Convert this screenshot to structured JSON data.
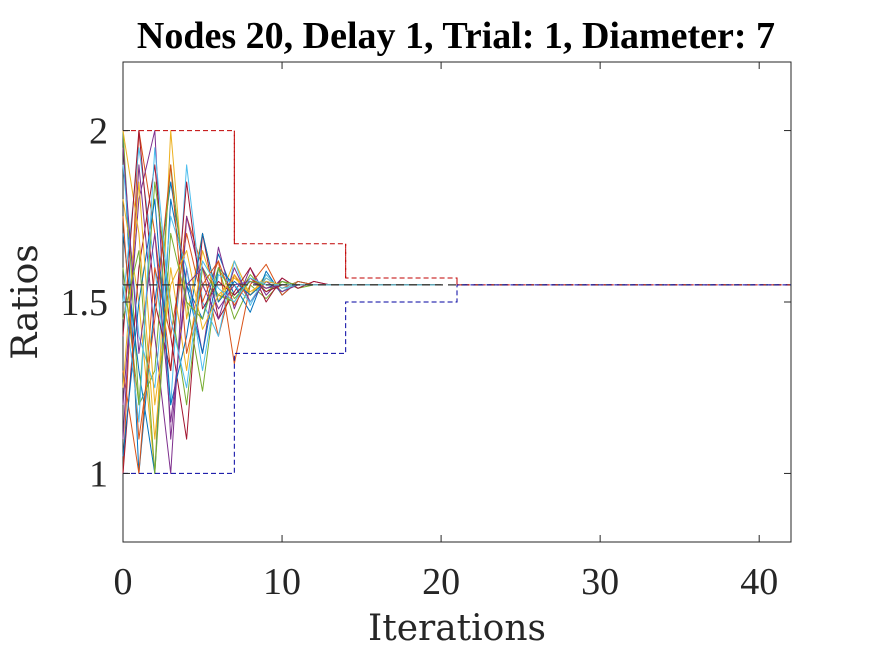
{
  "chart_data": {
    "type": "line",
    "title": "Nodes 20, Delay 1, Trial: 1, Diameter: 7",
    "xlabel": "Iterations",
    "ylabel": "Ratios",
    "xlim": [
      0,
      42
    ],
    "ylim": [
      0.8,
      2.2
    ],
    "xticks": [
      0,
      10,
      20,
      30,
      40
    ],
    "yticks": [
      1,
      1.5,
      2
    ],
    "xtick_labels": [
      "0",
      "10",
      "20",
      "30",
      "40"
    ],
    "ytick_labels": [
      "1",
      "1.5",
      "2"
    ],
    "grid": false,
    "legend": "none",
    "consensus_value": 1.55,
    "series_colors": [
      "#0072BD",
      "#D95319",
      "#EDB120",
      "#7E2F8E",
      "#77AC30",
      "#4DBEEE",
      "#A2142F"
    ],
    "bound_colors": {
      "upper": "#C00000",
      "lower": "#0000A0",
      "consensus": "#333333"
    },
    "upper_bound": {
      "x": [
        0,
        7,
        7,
        14,
        14,
        21,
        21,
        42
      ],
      "y": [
        2.0,
        2.0,
        1.67,
        1.67,
        1.57,
        1.57,
        1.55,
        1.55
      ]
    },
    "lower_bound": {
      "x": [
        0,
        7,
        7,
        14,
        14,
        21,
        21,
        42
      ],
      "y": [
        1.0,
        1.0,
        1.35,
        1.35,
        1.5,
        1.5,
        1.55,
        1.55
      ]
    },
    "series": [
      {
        "values": [
          2.0,
          1.0,
          1.5,
          1.85,
          1.55,
          1.45,
          1.64,
          1.52,
          1.56,
          1.54,
          1.56,
          1.55,
          1.55,
          1.55,
          1.55,
          1.55,
          1.55,
          1.55,
          1.55,
          1.55,
          1.55
        ]
      },
      {
        "values": [
          1.0,
          2.0,
          1.7,
          1.3,
          1.75,
          1.6,
          1.4,
          1.58,
          1.5,
          1.57,
          1.54,
          1.56,
          1.55,
          1.55,
          1.55,
          1.55,
          1.55,
          1.55,
          1.55,
          1.55,
          1.55
        ]
      },
      {
        "values": [
          1.8,
          1.5,
          1.0,
          2.0,
          1.45,
          1.7,
          1.5,
          1.62,
          1.52,
          1.58,
          1.53,
          1.56,
          1.55,
          1.55,
          1.55,
          1.55,
          1.55,
          1.55,
          1.55,
          1.55,
          1.55
        ]
      },
      {
        "values": [
          1.2,
          1.8,
          2.0,
          1.1,
          1.6,
          1.35,
          1.66,
          1.48,
          1.6,
          1.52,
          1.57,
          1.54,
          1.56,
          1.55,
          1.55,
          1.55,
          1.55,
          1.55,
          1.55,
          1.55,
          1.55
        ]
      },
      {
        "values": [
          2.0,
          1.2,
          1.3,
          1.9,
          1.5,
          1.24,
          1.6,
          1.45,
          1.55,
          1.51,
          1.56,
          1.54,
          1.55,
          1.55,
          1.55,
          1.55,
          1.55,
          1.55,
          1.55,
          1.55,
          1.55
        ]
      },
      {
        "values": [
          1.5,
          1.95,
          1.6,
          1.2,
          1.9,
          1.5,
          1.4,
          1.62,
          1.49,
          1.58,
          1.53,
          1.56,
          1.55,
          1.55,
          1.55,
          1.55,
          1.55,
          1.55,
          1.55,
          1.55,
          1.55
        ]
      },
      {
        "values": [
          1.0,
          1.6,
          1.9,
          1.4,
          1.1,
          1.7,
          1.45,
          1.53,
          1.6,
          1.5,
          1.57,
          1.54,
          1.56,
          1.55,
          1.55,
          1.55,
          1.55,
          1.55,
          1.55,
          1.55,
          1.55
        ]
      },
      {
        "values": [
          1.7,
          1.3,
          1.0,
          1.8,
          1.55,
          1.35,
          1.6,
          1.55,
          1.47,
          1.59,
          1.52,
          1.56,
          1.55,
          1.55,
          1.55,
          1.55,
          1.55,
          1.55,
          1.55,
          1.55,
          1.55
        ]
      },
      {
        "values": [
          1.3,
          1.0,
          1.6,
          1.4,
          1.7,
          1.5,
          1.62,
          1.32,
          1.55,
          1.61,
          1.52,
          1.56,
          1.55,
          1.55,
          1.55,
          1.55,
          1.55,
          1.55,
          1.55,
          1.55,
          1.55
        ]
      },
      {
        "values": [
          2.0,
          1.7,
          1.1,
          1.6,
          1.3,
          1.65,
          1.5,
          1.58,
          1.52,
          1.57,
          1.54,
          1.55,
          1.55,
          1.55,
          1.55,
          1.55,
          1.55,
          1.55,
          1.55,
          1.55,
          1.55
        ]
      },
      {
        "values": [
          1.1,
          1.9,
          1.4,
          1.0,
          1.75,
          1.55,
          1.45,
          1.6,
          1.5,
          1.56,
          1.53,
          1.55,
          1.55,
          1.55,
          1.55,
          1.55,
          1.55,
          1.55,
          1.55,
          1.55,
          1.55
        ]
      },
      {
        "values": [
          1.6,
          1.2,
          1.85,
          1.5,
          1.2,
          1.6,
          1.52,
          1.5,
          1.58,
          1.53,
          1.56,
          1.55,
          1.55,
          1.55,
          1.55,
          1.55,
          1.55,
          1.55,
          1.55,
          1.55,
          1.55
        ]
      },
      {
        "values": [
          1.9,
          1.4,
          1.25,
          1.75,
          1.6,
          1.3,
          1.58,
          1.55,
          1.5,
          1.57,
          1.54,
          1.55,
          1.55,
          1.55,
          1.55,
          1.55,
          1.55,
          1.55,
          1.55,
          1.55,
          1.55
        ]
      },
      {
        "values": [
          1.4,
          2.0,
          1.5,
          1.3,
          1.85,
          1.48,
          1.56,
          1.52,
          1.57,
          1.53,
          1.55,
          1.55,
          1.55,
          1.55,
          1.55,
          1.55,
          1.55,
          1.55,
          1.55,
          1.55,
          1.55
        ]
      },
      {
        "values": [
          1.05,
          1.5,
          1.8,
          1.2,
          1.4,
          1.7,
          1.5,
          1.56,
          1.52,
          1.56,
          1.55,
          1.55,
          1.55,
          1.55,
          1.55,
          1.55,
          1.55,
          1.55,
          1.55,
          1.55,
          1.55
        ]
      },
      {
        "values": [
          1.75,
          1.1,
          1.45,
          1.9,
          1.35,
          1.55,
          1.62,
          1.49,
          1.57,
          1.54,
          1.55,
          1.55,
          1.55,
          1.55,
          1.55,
          1.55,
          1.55,
          1.55,
          1.55,
          1.55,
          1.55
        ]
      },
      {
        "values": [
          1.25,
          1.85,
          1.2,
          1.55,
          1.65,
          1.42,
          1.52,
          1.57,
          1.53,
          1.56,
          1.55,
          1.55,
          1.55,
          1.55,
          1.55,
          1.55,
          1.55,
          1.55,
          1.55,
          1.55,
          1.55
        ]
      },
      {
        "values": [
          1.95,
          1.35,
          1.7,
          1.15,
          1.55,
          1.6,
          1.48,
          1.55,
          1.56,
          1.54,
          1.55,
          1.55,
          1.55,
          1.55,
          1.55,
          1.55,
          1.55,
          1.55,
          1.55,
          1.55,
          1.55
        ]
      },
      {
        "values": [
          1.45,
          1.65,
          1.0,
          1.7,
          1.5,
          1.45,
          1.6,
          1.51,
          1.56,
          1.55,
          1.55,
          1.55,
          1.55,
          1.55,
          1.55,
          1.55,
          1.55,
          1.55,
          1.55,
          1.55,
          1.55
        ]
      },
      {
        "values": [
          1.55,
          1.15,
          1.95,
          1.45,
          1.25,
          1.62,
          1.54,
          1.5,
          1.57,
          1.55,
          1.55,
          1.55,
          1.55,
          1.55,
          1.55,
          1.55,
          1.55,
          1.55,
          1.55,
          1.55,
          1.55
        ]
      }
    ]
  }
}
